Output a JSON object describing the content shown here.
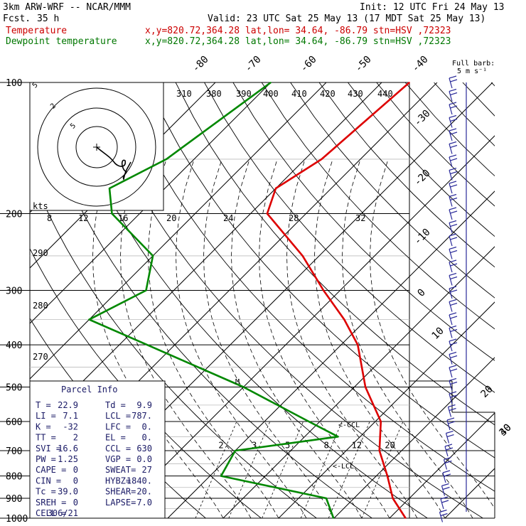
{
  "header": {
    "model": "3km ARW-WRF -- NCAR/MMM",
    "init": "Init: 12 UTC Fri 24 May 13",
    "fcst_label": "Fcst.",
    "fcst_value": "35 h",
    "valid": "Valid: 23 UTC Sat 25 May 13 (17 MDT Sat 25 May 13)",
    "temp_label": "Temperature",
    "temp_info": "x,y=820.72,364.28   lat,lon= 34.64, -86.79   stn=HSV ,72323",
    "dew_label": "Dewpoint temperature",
    "dew_info": "x,y=820.72,364.28   lat,lon= 34.64, -86.79   stn=HSV ,72323"
  },
  "colors": {
    "temperature": "#dd0000",
    "dewpoint": "#008800",
    "wind_barb": "#2a2a99",
    "background": "#ffffff"
  },
  "chart_data": {
    "type": "line",
    "pressure_levels": [
      "100",
      "200",
      "300",
      "400",
      "500",
      "600",
      "700",
      "800",
      "900",
      "1000"
    ],
    "temp_axis_labels": [
      "-80",
      "-70",
      "-60",
      "-50",
      "-40",
      "-30",
      "-20",
      "-10",
      "0",
      "10",
      "20",
      "30",
      "40"
    ],
    "theta_labels": [
      "310",
      "380",
      "390",
      "400",
      "410",
      "420",
      "430",
      "440"
    ],
    "theta_left_labels": [
      "290",
      "280",
      "270"
    ],
    "mixing_ratio_labels": [
      "2",
      "3",
      "5",
      "8",
      "12",
      "20"
    ],
    "hodograph_speed_labels": [
      "8",
      "12",
      "16",
      "20",
      "24",
      "28",
      "32"
    ],
    "hodograph_ring_labels": [
      "5",
      "2",
      "5"
    ],
    "hodograph_kts_label": "kts",
    "full_barb_label": "Full barb:",
    "full_barb_value": "5 m s⁻¹",
    "series": [
      {
        "name": "Temperature",
        "points": [
          {
            "p": 100,
            "t": -55
          },
          {
            "p": 150,
            "t": -57
          },
          {
            "p": 175,
            "t": -60
          },
          {
            "p": 200,
            "t": -57
          },
          {
            "p": 250,
            "t": -43
          },
          {
            "p": 300,
            "t": -33
          },
          {
            "p": 350,
            "t": -24
          },
          {
            "p": 400,
            "t": -17
          },
          {
            "p": 500,
            "t": -8
          },
          {
            "p": 600,
            "t": 1
          },
          {
            "p": 700,
            "t": 6
          },
          {
            "p": 800,
            "t": 12
          },
          {
            "p": 900,
            "t": 17
          },
          {
            "p": 1000,
            "t": 22.9
          }
        ]
      },
      {
        "name": "Dewpoint temperature",
        "points": [
          {
            "p": 100,
            "t": -80
          },
          {
            "p": 150,
            "t": -85
          },
          {
            "p": 175,
            "t": -90
          },
          {
            "p": 200,
            "t": -85
          },
          {
            "p": 250,
            "t": -70
          },
          {
            "p": 300,
            "t": -65
          },
          {
            "p": 350,
            "t": -70
          },
          {
            "p": 400,
            "t": -55
          },
          {
            "p": 500,
            "t": -30
          },
          {
            "p": 600,
            "t": -12
          },
          {
            "p": 650,
            "t": -4
          },
          {
            "p": 700,
            "t": -20
          },
          {
            "p": 800,
            "t": -18
          },
          {
            "p": 900,
            "t": 5
          },
          {
            "p": 1000,
            "t": 9.9
          }
        ]
      }
    ],
    "annotations": [
      "<-CCL",
      "<-LCL",
      "M"
    ]
  },
  "parcel_info": {
    "title": "Parcel Info",
    "rows": [
      [
        "T  =",
        "22.9",
        "Td =",
        "9.9"
      ],
      [
        "LI =",
        "7.1",
        "LCL =",
        "787."
      ],
      [
        "K  =",
        "-32",
        "LFC =",
        "0."
      ],
      [
        "TT =",
        "2",
        "EL =",
        "0."
      ],
      [
        "SVI =",
        "16.6",
        "CCL =",
        "630"
      ],
      [
        "PW =",
        "1.25",
        "VGP =",
        "0.0"
      ],
      [
        "CAPE =",
        "0",
        "SWEAT=",
        "27"
      ],
      [
        "CIN =",
        "0",
        "HYBZ=",
        "1840."
      ],
      [
        "Tc =",
        "39.0",
        "SHEAR=",
        "20."
      ],
      [
        "SREH =",
        "0",
        "LAPSE=",
        "7.0"
      ],
      [
        "CELL =",
        "306/21",
        "",
        ""
      ]
    ]
  }
}
